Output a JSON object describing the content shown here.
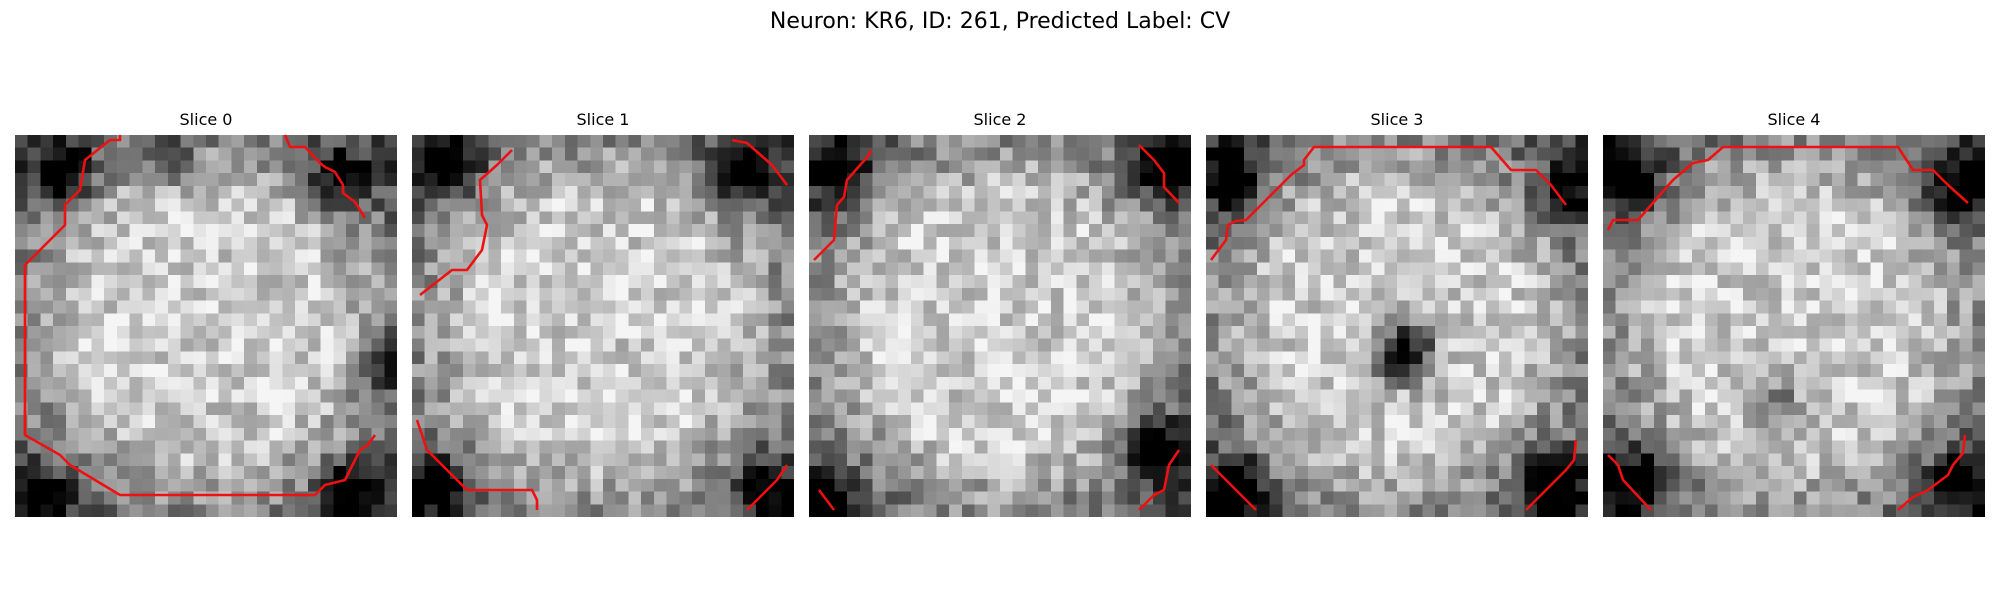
{
  "figure": {
    "title": "Neuron: KR6, ID: 261, Predicted Label: CV"
  },
  "colors": {
    "contour": "#ee1111",
    "background": "#ffffff",
    "image_colormap": "grayscale"
  },
  "image_grid": {
    "rows": 30,
    "cols": 30
  },
  "panels": [
    {
      "title": "Slice 0",
      "dark_regions": [
        {
          "r": 0.1,
          "c": 0.13,
          "w": 1.0
        },
        {
          "r": 0.12,
          "c": 0.85,
          "w": 1.0
        },
        {
          "r": 0.6,
          "c": 0.97,
          "w": 0.8
        },
        {
          "r": 0.92,
          "c": 0.88,
          "w": 1.0
        },
        {
          "r": 0.95,
          "c": 0.08,
          "w": 0.8
        },
        {
          "r": 0.05,
          "c": 0.4,
          "w": 0.6
        }
      ],
      "contours": [
        [
          [
            0.04,
            0.36
          ],
          [
            0.07,
            0.33
          ],
          [
            0.07,
            0.3
          ],
          [
            0.09,
            0.27
          ],
          [
            0.22,
            0.23
          ],
          [
            0.23,
            0.2
          ],
          [
            0.24,
            0.19
          ],
          [
            0.4,
            0.16
          ],
          [
            0.42,
            0.15
          ],
          [
            0.51,
            0.04
          ],
          [
            0.66,
            0.02
          ],
          [
            0.74,
            0.02
          ],
          [
            0.83,
            0.01
          ],
          [
            0.82,
            0.03
          ],
          [
            0.86,
            0.06
          ],
          [
            0.89,
            0.07
          ],
          [
            0.99,
            0.1
          ],
          [
            0.99,
            0.1
          ]
        ],
        [
          [
            0.0,
            0.0
          ]
        ]
      ]
    },
    {
      "title": "Slice 1",
      "dark_regions": [
        {
          "r": 0.08,
          "c": 0.1,
          "w": 1.0
        },
        {
          "r": 0.1,
          "c": 0.86,
          "w": 1.2
        },
        {
          "r": 0.92,
          "c": 0.07,
          "w": 0.8
        },
        {
          "r": 0.92,
          "c": 0.92,
          "w": 0.8
        }
      ],
      "contours": []
    },
    {
      "title": "Slice 2",
      "dark_regions": [
        {
          "r": 0.1,
          "c": 0.08,
          "w": 1.0
        },
        {
          "r": 0.08,
          "c": 0.93,
          "w": 1.0
        },
        {
          "r": 0.82,
          "c": 0.9,
          "w": 1.4
        },
        {
          "r": 0.95,
          "c": 0.05,
          "w": 0.8
        }
      ],
      "contours": []
    },
    {
      "title": "Slice 3",
      "dark_regions": [
        {
          "r": 0.57,
          "c": 0.52,
          "w": 1.4
        },
        {
          "r": 0.12,
          "c": 0.07,
          "w": 1.0
        },
        {
          "r": 0.92,
          "c": 0.08,
          "w": 1.0
        },
        {
          "r": 0.9,
          "c": 0.9,
          "w": 1.2
        },
        {
          "r": 0.15,
          "c": 0.95,
          "w": 0.8
        }
      ],
      "contours": []
    },
    {
      "title": "Slice 4",
      "dark_regions": [
        {
          "r": 0.12,
          "c": 0.07,
          "w": 1.2
        },
        {
          "r": 0.14,
          "c": 0.93,
          "w": 1.0
        },
        {
          "r": 0.9,
          "c": 0.08,
          "w": 1.0
        },
        {
          "r": 0.9,
          "c": 0.92,
          "w": 1.0
        },
        {
          "r": 0.7,
          "c": 0.45,
          "w": 0.6
        }
      ],
      "contours": []
    }
  ]
}
